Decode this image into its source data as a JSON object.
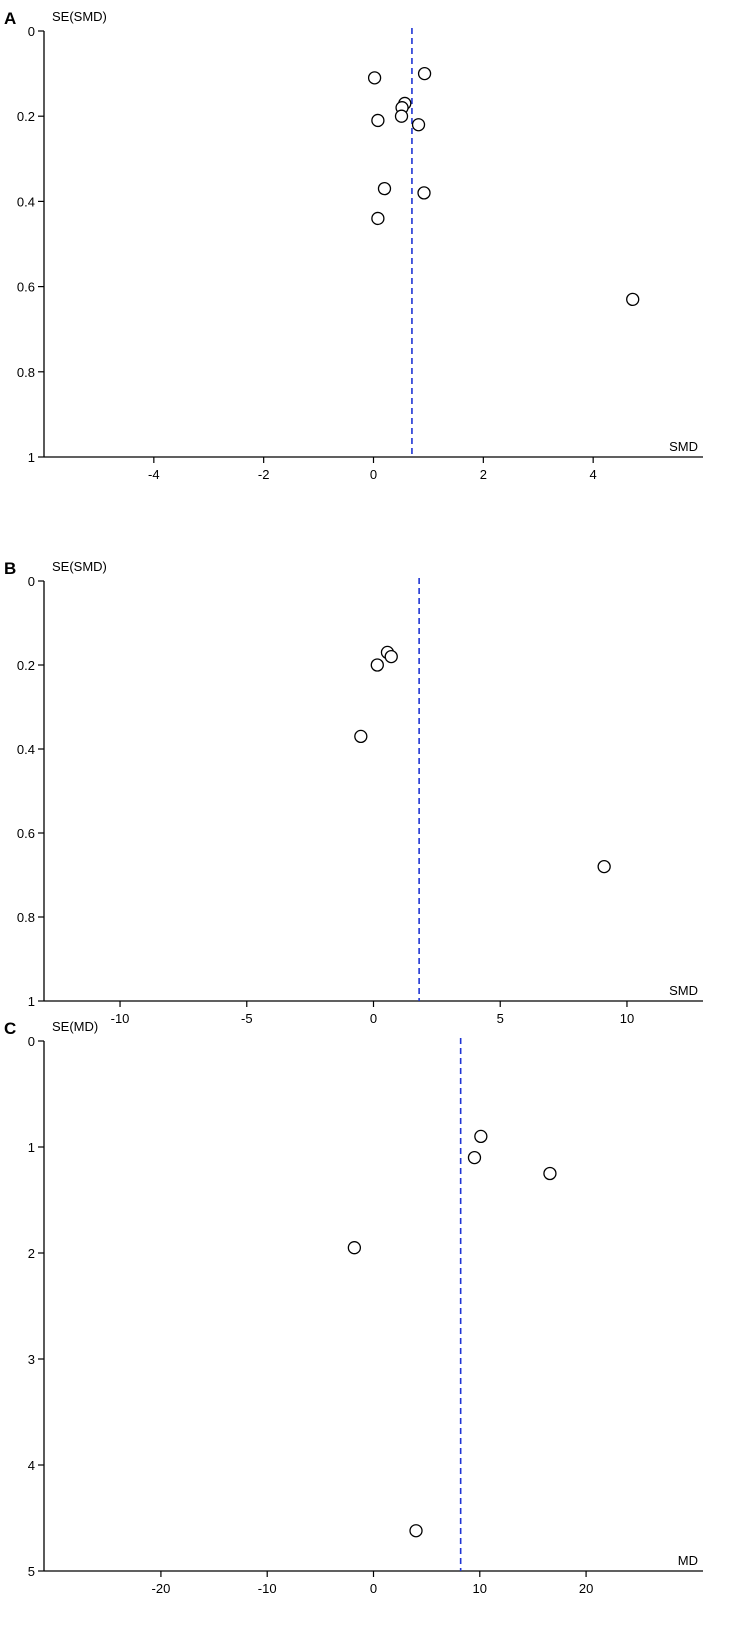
{
  "chart_data": [
    {
      "type": "scatter",
      "panel": "A",
      "xlabel": "SMD",
      "ylabel": "SE(SMD)",
      "xlim": [
        -6,
        6
      ],
      "ylim": [
        0,
        1
      ],
      "y_inverted": true,
      "xticks": [
        -4,
        -2,
        0,
        2,
        4
      ],
      "yticks": [
        0,
        0.2,
        0.4,
        0.6,
        0.8,
        1
      ],
      "reference_line_x": 0.7,
      "points": [
        {
          "x": 0.93,
          "y": 0.1
        },
        {
          "x": 0.02,
          "y": 0.11
        },
        {
          "x": 0.57,
          "y": 0.17
        },
        {
          "x": 0.52,
          "y": 0.18
        },
        {
          "x": 0.51,
          "y": 0.2
        },
        {
          "x": 0.08,
          "y": 0.21
        },
        {
          "x": 0.82,
          "y": 0.22
        },
        {
          "x": 0.2,
          "y": 0.37
        },
        {
          "x": 0.92,
          "y": 0.38
        },
        {
          "x": 0.08,
          "y": 0.44
        },
        {
          "x": 4.72,
          "y": 0.63
        }
      ]
    },
    {
      "type": "scatter",
      "panel": "B",
      "xlabel": "SMD",
      "ylabel": "SE(SMD)",
      "xlim": [
        -13,
        13
      ],
      "ylim": [
        0,
        1
      ],
      "y_inverted": true,
      "xticks": [
        -10,
        -5,
        0,
        5,
        10
      ],
      "yticks": [
        0,
        0.2,
        0.4,
        0.6,
        0.8,
        1
      ],
      "reference_line_x": 1.8,
      "points": [
        {
          "x": 0.55,
          "y": 0.17
        },
        {
          "x": 0.7,
          "y": 0.18
        },
        {
          "x": 0.15,
          "y": 0.2
        },
        {
          "x": -0.5,
          "y": 0.37
        },
        {
          "x": 9.1,
          "y": 0.68
        }
      ]
    },
    {
      "type": "scatter",
      "panel": "C",
      "xlabel": "MD",
      "ylabel": "SE(MD)",
      "xlim": [
        -31,
        31
      ],
      "ylim": [
        0,
        5
      ],
      "y_inverted": true,
      "xticks": [
        -20,
        -10,
        0,
        10,
        20
      ],
      "yticks": [
        0,
        1,
        2,
        3,
        4,
        5
      ],
      "reference_line_x": 8.2,
      "points": [
        {
          "x": 10.1,
          "y": 0.9
        },
        {
          "x": 9.5,
          "y": 1.1
        },
        {
          "x": 16.6,
          "y": 1.25
        },
        {
          "x": -1.8,
          "y": 1.95
        },
        {
          "x": 4.0,
          "y": 4.62
        }
      ]
    }
  ]
}
